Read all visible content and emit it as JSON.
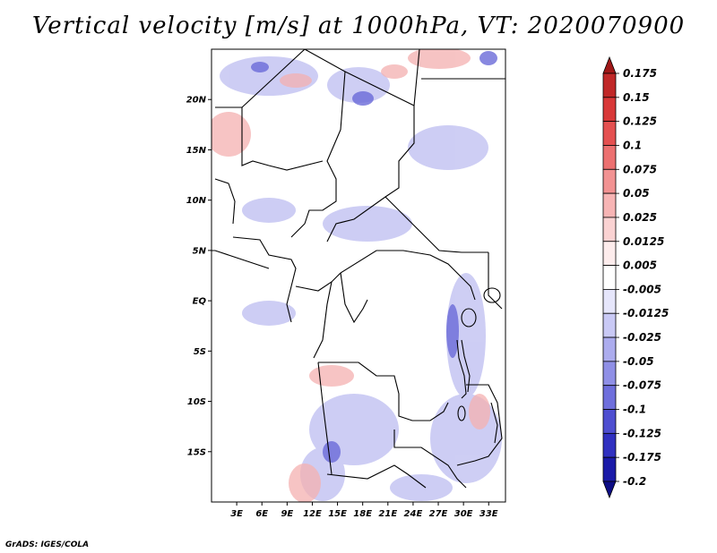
{
  "title": "Vertical velocity [m/s] at 1000hPa, VT: 2020070900",
  "credit": "GrADS: IGES/COLA",
  "map": {
    "lon_range": [
      0,
      35
    ],
    "lat_range": [
      -20,
      25
    ],
    "lat_ticks": [
      {
        "value": 20,
        "label": "20N"
      },
      {
        "value": 15,
        "label": "15N"
      },
      {
        "value": 10,
        "label": "10N"
      },
      {
        "value": 5,
        "label": "5N"
      },
      {
        "value": 0,
        "label": "EQ"
      },
      {
        "value": -5,
        "label": "5S"
      },
      {
        "value": -10,
        "label": "10S"
      },
      {
        "value": -15,
        "label": "15S"
      }
    ],
    "lon_ticks": [
      {
        "value": 3,
        "label": "3E"
      },
      {
        "value": 6,
        "label": "6E"
      },
      {
        "value": 9,
        "label": "9E"
      },
      {
        "value": 12,
        "label": "12E"
      },
      {
        "value": 15,
        "label": "15E"
      },
      {
        "value": 18,
        "label": "18E"
      },
      {
        "value": 21,
        "label": "21E"
      },
      {
        "value": 24,
        "label": "24E"
      },
      {
        "value": 27,
        "label": "27E"
      },
      {
        "value": 30,
        "label": "30E"
      },
      {
        "value": 33,
        "label": "33E"
      }
    ]
  },
  "colorbar": {
    "labels": [
      "0.175",
      "0.15",
      "0.125",
      "0.1",
      "0.075",
      "0.05",
      "0.025",
      "0.0125",
      "0.005",
      "-0.005",
      "-0.0125",
      "-0.025",
      "-0.05",
      "-0.075",
      "-0.1",
      "-0.125",
      "-0.175",
      "-0.2"
    ],
    "colors": [
      "#a01818",
      "#c02828",
      "#d83838",
      "#e45050",
      "#ec7070",
      "#f29292",
      "#f7b4b4",
      "#fad2d2",
      "#fdecec",
      "#ffffff",
      "#e6e6fb",
      "#c9c9f5",
      "#acacee",
      "#8f8fe6",
      "#6e6edc",
      "#4e4ed0",
      "#3030c0",
      "#1a1aa8",
      "#0d0d85"
    ]
  }
}
